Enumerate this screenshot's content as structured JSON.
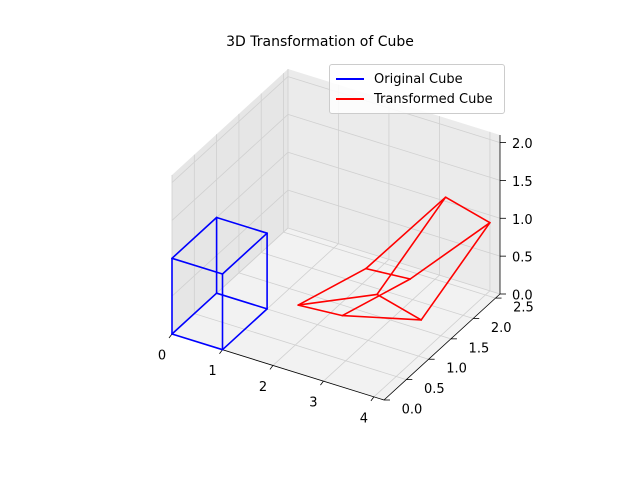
{
  "chart_data": {
    "type": "line",
    "projection": "3d",
    "title": "3D Transformation of Cube",
    "xlabel": "",
    "ylabel": "",
    "zlabel": "",
    "xlim": [
      0,
      4.2
    ],
    "ylim": [
      0,
      2.6
    ],
    "zlim": [
      0,
      2.1
    ],
    "x_ticks": [
      "0",
      "1",
      "2",
      "3",
      "4"
    ],
    "y_ticks": [
      "0.0",
      "0.5",
      "1.0",
      "1.5",
      "2.0",
      "2.5"
    ],
    "z_ticks": [
      "0.0",
      "0.5",
      "1.0",
      "1.5",
      "2.0"
    ],
    "grid": true,
    "legend_position": "top-right",
    "series": [
      {
        "name": "Original Cube",
        "color": "#0000ff",
        "vertices": [
          [
            0,
            0,
            0
          ],
          [
            1,
            0,
            0
          ],
          [
            1,
            1,
            0
          ],
          [
            0,
            1,
            0
          ],
          [
            0,
            0,
            1
          ],
          [
            1,
            0,
            1
          ],
          [
            1,
            1,
            1
          ],
          [
            0,
            1,
            1
          ]
        ],
        "edges": [
          [
            0,
            1
          ],
          [
            1,
            2
          ],
          [
            2,
            3
          ],
          [
            3,
            0
          ],
          [
            4,
            5
          ],
          [
            5,
            6
          ],
          [
            6,
            7
          ],
          [
            7,
            4
          ],
          [
            0,
            4
          ],
          [
            1,
            5
          ],
          [
            2,
            6
          ],
          [
            3,
            7
          ]
        ]
      },
      {
        "name": "Transformed Cube",
        "color": "#ff0000",
        "vertices": [
          [
            2.5,
            0,
            0.9
          ],
          [
            3.2,
            0.2,
            0.8
          ],
          [
            3.7,
            1.4,
            0.2
          ],
          [
            3.0,
            1.2,
            0.5
          ],
          [
            3.4,
            0.5,
            1.3
          ],
          [
            4.1,
            0.7,
            1.2
          ],
          [
            4.0,
            2.6,
            0.9
          ],
          [
            3.3,
            2.4,
            1.2
          ]
        ],
        "edges": [
          [
            0,
            1
          ],
          [
            1,
            2
          ],
          [
            2,
            3
          ],
          [
            3,
            0
          ],
          [
            4,
            5
          ],
          [
            5,
            6
          ],
          [
            6,
            7
          ],
          [
            7,
            4
          ],
          [
            0,
            4
          ],
          [
            1,
            5
          ],
          [
            2,
            6
          ],
          [
            3,
            7
          ]
        ]
      }
    ]
  }
}
